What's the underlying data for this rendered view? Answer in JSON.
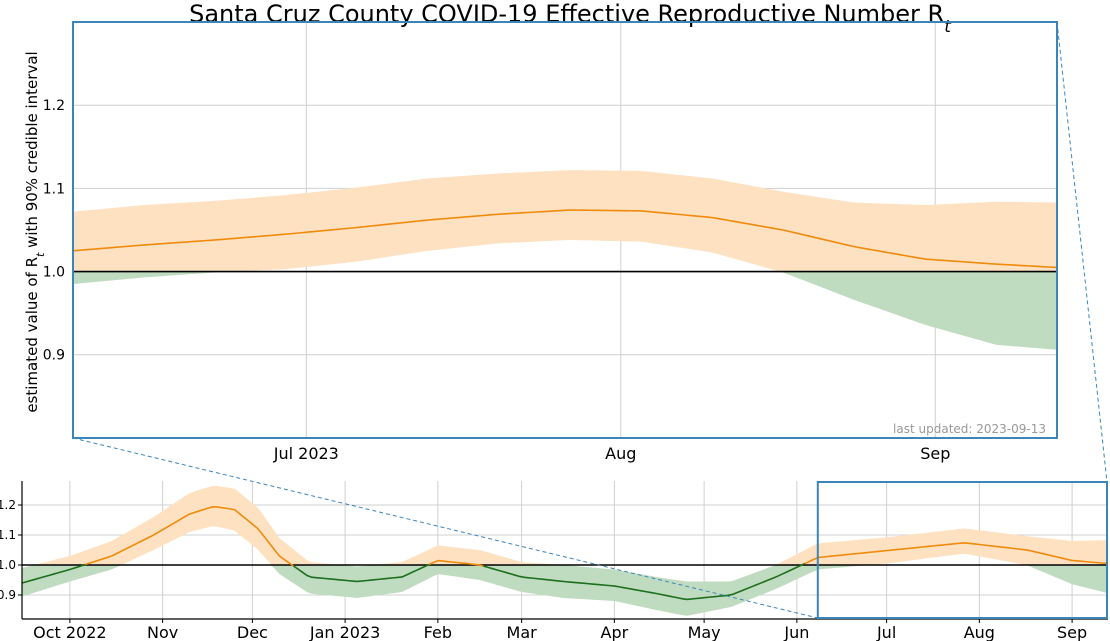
{
  "chart_data": [
    {
      "type": "line",
      "panel": "detail",
      "title": "Santa Cruz County COVID-19 Effective Reproductive Number R",
      "title_subscript": "t",
      "ylabel_prefix": "estimated value of R",
      "ylabel_subscript": "t",
      "ylabel_suffix": " with 90% credible interval",
      "annotation": "last updated: 2023-09-13",
      "xlim": [
        "2023-06-08",
        "2023-09-13"
      ],
      "ylim": [
        0.8,
        1.3
      ],
      "reference_line": 1.0,
      "grid": true,
      "x_ticks": [
        {
          "date": "2023-07-01",
          "label": "Jul 2023"
        },
        {
          "date": "2023-08-01",
          "label": "Aug"
        },
        {
          "date": "2023-09-01",
          "label": "Sep"
        }
      ],
      "y_ticks": [
        {
          "value": 0.9,
          "label": "0.9"
        },
        {
          "value": 1.0,
          "label": "1.0"
        },
        {
          "value": 1.1,
          "label": "1.1"
        },
        {
          "value": 1.2,
          "label": "1.2"
        }
      ],
      "series": [
        {
          "x": [
            "2023-06-08",
            "2023-06-15",
            "2023-06-22",
            "2023-06-29",
            "2023-07-06",
            "2023-07-13",
            "2023-07-20",
            "2023-07-27",
            "2023-08-03",
            "2023-08-10",
            "2023-08-17",
            "2023-08-24",
            "2023-08-31",
            "2023-09-07",
            "2023-09-13"
          ],
          "mean": [
            1.025,
            1.032,
            1.038,
            1.045,
            1.053,
            1.062,
            1.069,
            1.074,
            1.073,
            1.065,
            1.05,
            1.03,
            1.015,
            1.009,
            1.005
          ],
          "lower": [
            0.985,
            0.993,
            0.999,
            1.003,
            1.012,
            1.025,
            1.034,
            1.038,
            1.036,
            1.023,
            0.999,
            0.966,
            0.936,
            0.912,
            0.906
          ],
          "upper": [
            1.072,
            1.08,
            1.085,
            1.092,
            1.101,
            1.112,
            1.118,
            1.122,
            1.121,
            1.112,
            1.096,
            1.083,
            1.08,
            1.084,
            1.083
          ]
        }
      ],
      "colors": {
        "line": "#ef8a0c",
        "band_above": "#fde1c0",
        "band_below": "#c0dcc0",
        "frame": "#3b86b9",
        "reference": "#000000",
        "annotation": "#999999"
      }
    },
    {
      "type": "line",
      "panel": "overview",
      "xlim": [
        "2022-09-15",
        "2023-09-13"
      ],
      "ylim": [
        0.82,
        1.28
      ],
      "reference_line": 1.0,
      "grid": true,
      "x_ticks": [
        {
          "date": "2022-10-01",
          "label": "Oct 2022"
        },
        {
          "date": "2022-11-01",
          "label": "Nov"
        },
        {
          "date": "2022-12-01",
          "label": "Dec"
        },
        {
          "date": "2023-01-01",
          "label": "Jan 2023"
        },
        {
          "date": "2023-02-01",
          "label": "Feb"
        },
        {
          "date": "2023-03-01",
          "label": "Mar"
        },
        {
          "date": "2023-04-01",
          "label": "Apr"
        },
        {
          "date": "2023-05-01",
          "label": "May"
        },
        {
          "date": "2023-06-01",
          "label": "Jun"
        },
        {
          "date": "2023-07-01",
          "label": "Jul"
        },
        {
          "date": "2023-08-01",
          "label": "Aug"
        },
        {
          "date": "2023-09-01",
          "label": "Sep"
        }
      ],
      "y_ticks": [
        {
          "value": 0.9,
          "label": "0.9"
        },
        {
          "value": 1.0,
          "label": "1.0"
        },
        {
          "value": 1.1,
          "label": "1.1"
        },
        {
          "value": 1.2,
          "label": "1.2"
        }
      ],
      "series": [
        {
          "x": [
            "2022-09-15",
            "2022-10-01",
            "2022-10-15",
            "2022-10-29",
            "2022-11-10",
            "2022-11-18",
            "2022-11-25",
            "2022-12-03",
            "2022-12-10",
            "2022-12-20",
            "2023-01-05",
            "2023-01-20",
            "2023-02-01",
            "2023-02-15",
            "2023-03-01",
            "2023-03-15",
            "2023-04-01",
            "2023-04-15",
            "2023-04-25",
            "2023-05-10",
            "2023-05-25",
            "2023-06-08",
            "2023-07-01",
            "2023-07-27",
            "2023-08-17",
            "2023-09-01",
            "2023-09-13"
          ],
          "mean": [
            0.94,
            0.985,
            1.03,
            1.1,
            1.17,
            1.195,
            1.185,
            1.12,
            1.03,
            0.96,
            0.945,
            0.96,
            1.015,
            1.0,
            0.96,
            0.945,
            0.93,
            0.905,
            0.885,
            0.9,
            0.96,
            1.025,
            1.048,
            1.074,
            1.05,
            1.015,
            1.005
          ],
          "lower": [
            0.895,
            0.945,
            0.985,
            1.05,
            1.11,
            1.13,
            1.115,
            1.05,
            0.97,
            0.905,
            0.89,
            0.91,
            0.97,
            0.95,
            0.91,
            0.89,
            0.88,
            0.85,
            0.83,
            0.86,
            0.92,
            0.985,
            1.005,
            1.038,
            0.999,
            0.936,
            0.906
          ],
          "upper": [
            0.99,
            1.03,
            1.08,
            1.16,
            1.24,
            1.265,
            1.255,
            1.19,
            1.09,
            1.01,
            0.995,
            1.01,
            1.065,
            1.05,
            1.01,
            1.0,
            0.985,
            0.96,
            0.945,
            0.945,
            1.0,
            1.072,
            1.092,
            1.122,
            1.096,
            1.08,
            1.083
          ]
        }
      ],
      "colors": {
        "line": "#ef8a0c",
        "line_below": "#1d6e1d",
        "band_above": "#fde1c0",
        "band_below": "#c0dcc0",
        "reference": "#000000",
        "zoom_box": "#3b86b9"
      }
    }
  ]
}
